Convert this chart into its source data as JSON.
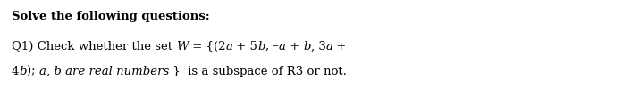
{
  "title_text": "Solve the following questions:",
  "line1_part1": "Q1) Check whether the set ",
  "line1_italic": "W",
  "line1_part2": " = {(2",
  "line1_italic2": "a",
  "line1_part3": " + 5",
  "line1_italic3": "b",
  "line1_part4": ", –",
  "line1_italic4": "a",
  "line1_part5": " + ",
  "line1_italic5": "b",
  "line1_part6": ", 3",
  "line1_italic6": "a",
  "line1_part7": " +",
  "line2_part1": "4",
  "line2_italic1": "b",
  "line2_part2": "); ",
  "line2_italic2": "a, b are real numbers",
  "line2_part3": " }  is a subspace of R3 or not.",
  "bg_color": "#ffffff",
  "title_fontsize": 9.5,
  "body_fontsize": 9.5,
  "fig_width": 7.06,
  "fig_height": 1.08,
  "dpi": 100
}
